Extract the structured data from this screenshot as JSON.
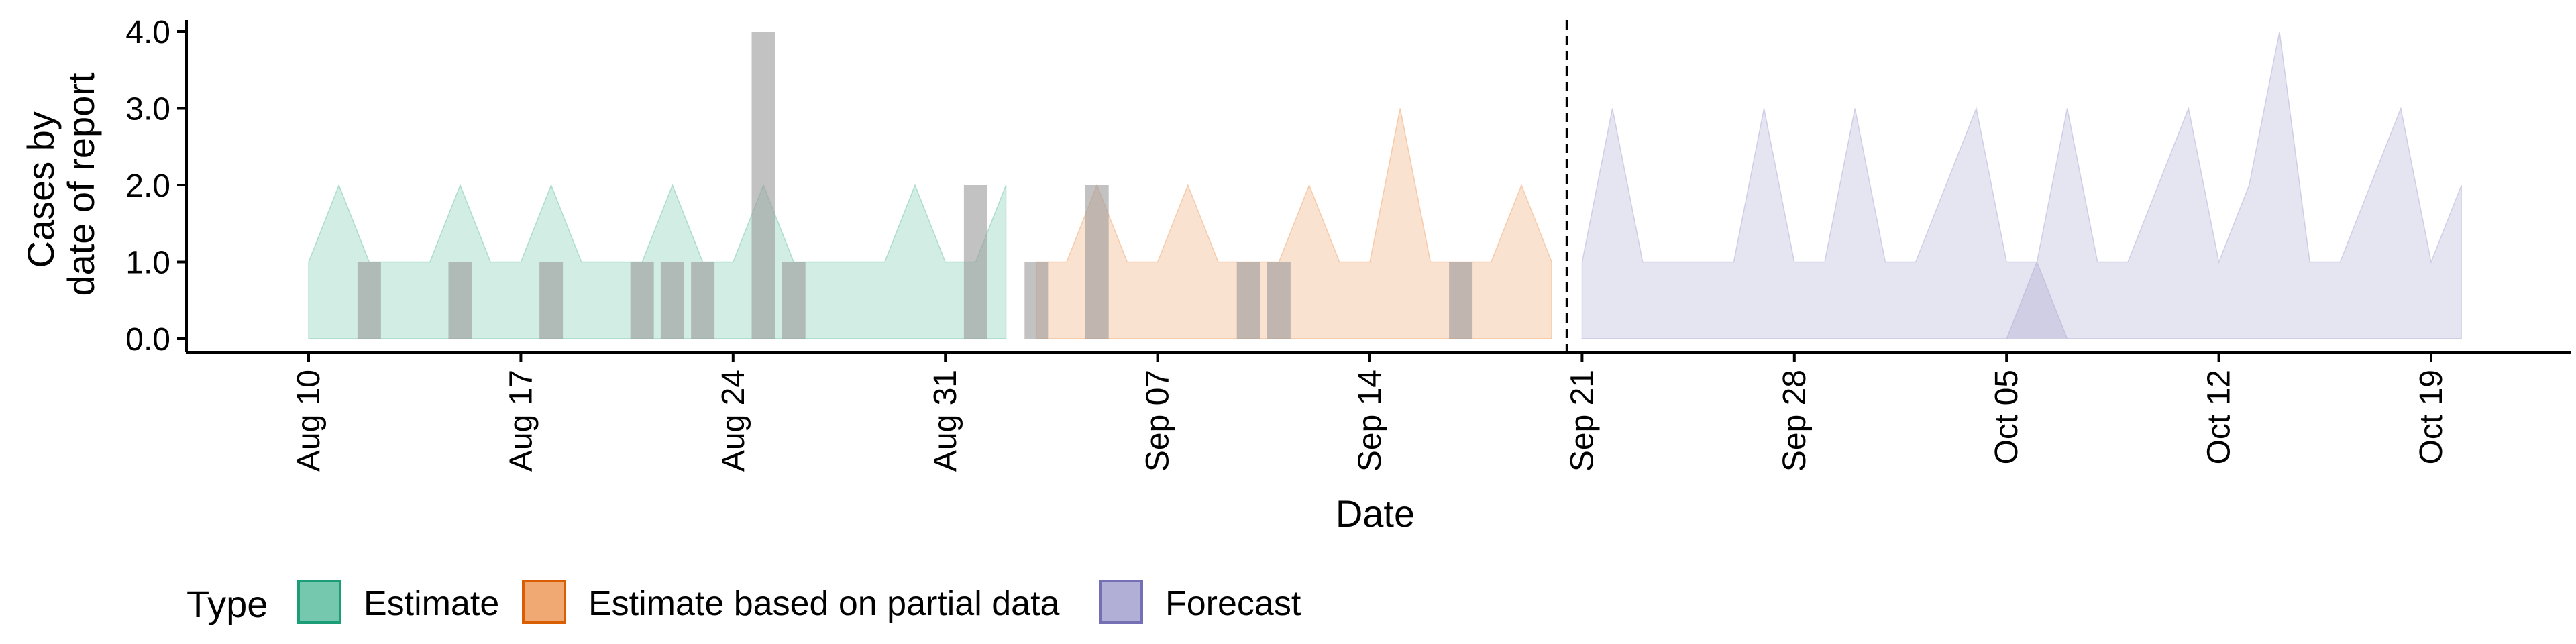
{
  "chart_data": {
    "type": "area",
    "xlabel": "Date",
    "ylabel": [
      "Cases by",
      "date of report"
    ],
    "ylim": [
      0,
      4
    ],
    "yticks": [
      "0.0",
      "1.0",
      "2.0",
      "3.0",
      "4.0"
    ],
    "x_ticks": [
      "Aug 10",
      "Aug 17",
      "Aug 24",
      "Aug 31",
      "Sep 07",
      "Sep 14",
      "Sep 21",
      "Sep 28",
      "Oct 05",
      "Oct 12",
      "Oct 19"
    ],
    "x_tick_dates": [
      "2020-08-10",
      "2020-08-17",
      "2020-08-24",
      "2020-08-31",
      "2020-09-07",
      "2020-09-14",
      "2020-09-21",
      "2020-09-28",
      "2020-10-05",
      "2020-10-12",
      "2020-10-19"
    ],
    "x_range": [
      "2020-08-06",
      "2020-10-23"
    ],
    "grid": false,
    "legend": {
      "title": "Type",
      "position": "bottom-left",
      "items": [
        {
          "label": "Estimate",
          "fill": "#66c2a5",
          "stroke": "#1b9e77"
        },
        {
          "label": "Estimate based on partial data",
          "fill": "#f0a064",
          "stroke": "#d95f02"
        },
        {
          "label": "Forecast",
          "fill": "#a9a6d0",
          "stroke": "#7570b3"
        }
      ]
    },
    "forecast_cutoff": "2020-09-20",
    "series": [
      {
        "name": "Estimate",
        "color": "#66c2a5",
        "dates": [
          "2020-08-10",
          "2020-08-11",
          "2020-08-12",
          "2020-08-13",
          "2020-08-14",
          "2020-08-15",
          "2020-08-16",
          "2020-08-17",
          "2020-08-18",
          "2020-08-19",
          "2020-08-20",
          "2020-08-21",
          "2020-08-22",
          "2020-08-23",
          "2020-08-24",
          "2020-08-25",
          "2020-08-26",
          "2020-08-27",
          "2020-08-28",
          "2020-08-29",
          "2020-08-30",
          "2020-08-31",
          "2020-09-01",
          "2020-09-02"
        ],
        "upper": [
          1,
          2,
          1,
          1,
          1,
          2,
          1,
          1,
          2,
          1,
          1,
          1,
          2,
          1,
          1,
          2,
          1,
          1,
          1,
          1,
          2,
          1,
          1,
          2
        ]
      },
      {
        "name": "Estimate based on partial data",
        "color": "#f0a064",
        "dates": [
          "2020-09-03",
          "2020-09-04",
          "2020-09-05",
          "2020-09-06",
          "2020-09-07",
          "2020-09-08",
          "2020-09-09",
          "2020-09-10",
          "2020-09-11",
          "2020-09-12",
          "2020-09-13",
          "2020-09-14",
          "2020-09-15",
          "2020-09-16",
          "2020-09-17",
          "2020-09-18",
          "2020-09-19",
          "2020-09-20"
        ],
        "upper": [
          1,
          1,
          2,
          1,
          1,
          2,
          1,
          1,
          1,
          2,
          1,
          1,
          3,
          1,
          1,
          1,
          2,
          1
        ]
      },
      {
        "name": "Forecast",
        "color": "#a9a6d0",
        "dates": [
          "2020-09-21",
          "2020-09-22",
          "2020-09-23",
          "2020-09-24",
          "2020-09-25",
          "2020-09-26",
          "2020-09-27",
          "2020-09-28",
          "2020-09-29",
          "2020-09-30",
          "2020-10-01",
          "2020-10-02",
          "2020-10-03",
          "2020-10-04",
          "2020-10-05",
          "2020-10-06",
          "2020-10-07",
          "2020-10-08",
          "2020-10-09",
          "2020-10-10",
          "2020-10-11",
          "2020-10-12",
          "2020-10-13",
          "2020-10-14",
          "2020-10-15",
          "2020-10-16",
          "2020-10-17",
          "2020-10-18",
          "2020-10-19",
          "2020-10-20"
        ],
        "upper": [
          1,
          3,
          1,
          1,
          1,
          1,
          3,
          1,
          1,
          3,
          1,
          1,
          2,
          3,
          1,
          1,
          3,
          1,
          1,
          2,
          3,
          1,
          2,
          4,
          1,
          1,
          2,
          3,
          1,
          2
        ],
        "lower_bump": {
          "start": "2020-10-05",
          "peak": "2020-10-06",
          "end": "2020-10-07",
          "peak_value": 1
        }
      }
    ],
    "reported_cases": {
      "color": "#999999",
      "dates": [
        "2020-08-12",
        "2020-08-15",
        "2020-08-18",
        "2020-08-21",
        "2020-08-22",
        "2020-08-23",
        "2020-08-25",
        "2020-08-26",
        "2020-09-01",
        "2020-09-03",
        "2020-09-05",
        "2020-09-10",
        "2020-09-11",
        "2020-09-17"
      ],
      "values": [
        1,
        1,
        1,
        1,
        1,
        1,
        4,
        1,
        2,
        1,
        2,
        1,
        1,
        1
      ]
    }
  }
}
